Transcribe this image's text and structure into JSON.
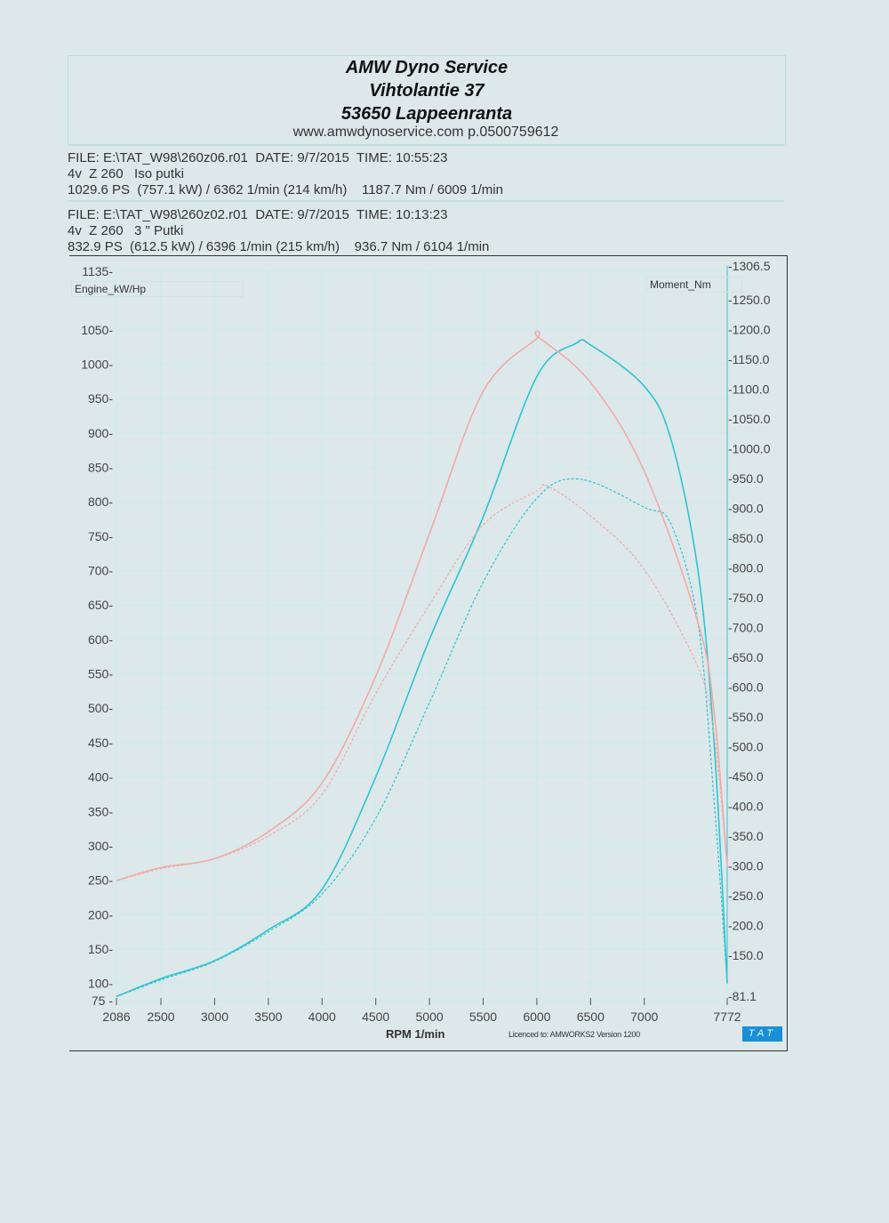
{
  "header": {
    "line1": "AMW Dyno Service",
    "line2": "Vihtolantie 37",
    "line3": "53650 Lappeenranta",
    "web": "www.amwdynoservice.com p.0500759612"
  },
  "runs": [
    {
      "file_line": "FILE: E:\\TAT_W98\\260z06.r01  DATE: 9/7/2015  TIME: 10:55:23",
      "desc_line": "4v  Z 260   Iso putki",
      "result_line": "1029.6 PS  (757.1 kW) / 6362 1/min (214 km/h)    1187.7 Nm / 6009 1/min"
    },
    {
      "file_line": "FILE: E:\\TAT_W98\\260z02.r01  DATE: 9/7/2015  TIME: 10:13:23",
      "desc_line": "4v  Z 260   3 \" Putki",
      "result_line": "832.9 PS  (612.5 kW) / 6396 1/min (215 km/h)    936.7 Nm / 6104 1/min"
    }
  ],
  "footer": {
    "license": "Licenced to: AMWORKS2   Version 1200",
    "brand": "TAT"
  },
  "chart_data": {
    "type": "line",
    "xlabel": "RPM  1/min",
    "ylabel_left": "Engine_kW/Hp",
    "ylabel_right": "Moment_Nm",
    "xlim": [
      2086,
      7772
    ],
    "ylim_left": [
      75,
      1135
    ],
    "ylim_right": [
      81.1,
      1306.5
    ],
    "x_ticks": [
      "2086",
      "2500",
      "3000",
      "3500",
      "4000",
      "4500",
      "5000",
      "5500",
      "6000",
      "6500",
      "7000",
      "7772"
    ],
    "y_left_ticks": [
      "75",
      "100",
      "150",
      "200",
      "250",
      "300",
      "350",
      "400",
      "450",
      "500",
      "550",
      "600",
      "650",
      "700",
      "750",
      "800",
      "850",
      "900",
      "950",
      "1000",
      "1050",
      "1135"
    ],
    "y_right_ticks": [
      "81.1",
      "150.0",
      "200.0",
      "250.0",
      "300.0",
      "350.0",
      "400.0",
      "450.0",
      "500.0",
      "550.0",
      "600.0",
      "650.0",
      "700.0",
      "750.0",
      "800.0",
      "850.0",
      "900.0",
      "950.0",
      "1000.0",
      "1050.0",
      "1100.0",
      "1150.0",
      "1200.0",
      "1250.0",
      "1306.5"
    ],
    "grid": true,
    "colors": {
      "power": "#2ec4d0",
      "torque": "#f2a9a6",
      "grid": "#c8ecee"
    },
    "series": [
      {
        "run": 1,
        "quantity": "power",
        "axis": "left",
        "style": "solid",
        "x": [
          2086,
          2500,
          3000,
          3500,
          4000,
          4500,
          5000,
          5500,
          6000,
          6362,
          6500,
          7000,
          7250,
          7500,
          7650,
          7772
        ],
        "y": [
          81,
          107,
          133,
          178,
          237,
          400,
          600,
          778,
          982,
          1030,
          1028,
          968,
          890,
          700,
          450,
          100
        ]
      },
      {
        "run": 2,
        "quantity": "power",
        "axis": "left",
        "style": "dashed",
        "x": [
          2086,
          2500,
          3000,
          3500,
          4000,
          4500,
          5000,
          5500,
          6000,
          6396,
          7000,
          7250,
          7500,
          7650,
          7772
        ],
        "y": [
          81,
          105,
          132,
          175,
          230,
          340,
          508,
          683,
          805,
          833,
          792,
          767,
          624,
          366,
          100
        ]
      },
      {
        "run": 1,
        "quantity": "torque",
        "axis": "right",
        "style": "solid",
        "x": [
          2086,
          2500,
          3000,
          3500,
          4000,
          4500,
          5000,
          5500,
          6000,
          6009,
          6500,
          7000,
          7500,
          7650,
          7772
        ],
        "y": [
          275,
          297,
          312,
          357,
          439,
          618,
          857,
          1096,
          1185,
          1187.7,
          1111,
          962,
          708,
          559,
          300
        ]
      },
      {
        "run": 2,
        "quantity": "torque",
        "axis": "right",
        "style": "dashed",
        "x": [
          2086,
          2500,
          3000,
          3500,
          4000,
          4500,
          5000,
          5500,
          6000,
          6104,
          6500,
          7000,
          7500,
          7650,
          7772
        ],
        "y": [
          275,
          295,
          312,
          350,
          420,
          589,
          738,
          872,
          929,
          936.7,
          887,
          797,
          633,
          520,
          300
        ]
      }
    ]
  }
}
